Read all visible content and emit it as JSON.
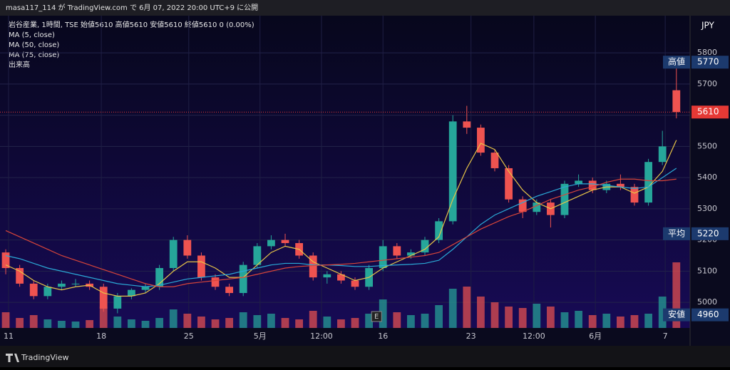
{
  "header": {
    "publisher": "masa117_114 が TradingView.com で 6月 07, 2022 20:00 UTC+9 に公開"
  },
  "footer": {
    "brand": "TradingView"
  },
  "chart_data": {
    "type": "candlestick",
    "legend_lines": [
      "岩谷産業, 1時間, TSE  始値5610 高値5610 安値5610 終値5610 0 (0.00%)",
      "MA (5, close)",
      "MA (50, close)",
      "MA (75, close)",
      "出来高"
    ],
    "currency": "JPY",
    "earnings_marker": "E",
    "x": [
      0,
      1,
      2,
      3,
      4,
      5,
      6,
      7,
      8,
      9,
      10,
      11,
      12,
      13,
      14,
      15,
      16,
      17,
      18,
      19,
      20,
      21,
      22,
      23,
      24,
      25,
      26,
      27,
      28,
      29,
      30,
      31,
      32,
      33,
      34,
      35,
      36,
      37,
      38,
      39,
      40,
      41,
      42,
      43,
      44,
      45,
      46,
      47,
      48
    ],
    "xlim": [
      -0.41,
      48.98
    ],
    "xticks": [
      {
        "value": 0.2,
        "label": "11"
      },
      {
        "value": 6.84,
        "label": "18"
      },
      {
        "value": 13.1,
        "label": "25"
      },
      {
        "value": 18.2,
        "label": "5月"
      },
      {
        "value": 22.6,
        "label": "12:00"
      },
      {
        "value": 27.0,
        "label": "16"
      },
      {
        "value": 33.3,
        "label": "23"
      },
      {
        "value": 37.8,
        "label": "12:00"
      },
      {
        "value": 42.2,
        "label": "6月"
      },
      {
        "value": 47.2,
        "label": "7"
      }
    ],
    "ylim": [
      4918,
      5919
    ],
    "yticks": [
      5000,
      5100,
      5200,
      5300,
      5400,
      5500,
      5600,
      5700,
      5800
    ],
    "up_color": "#26a69a",
    "down_color": "#ef5350",
    "open": [
      5160,
      5110,
      5060,
      5020,
      5050,
      5060,
      5060,
      5050,
      4980,
      5020,
      5040,
      5050,
      5110,
      5200,
      5150,
      5080,
      5050,
      5030,
      5120,
      5180,
      5200,
      5190,
      5150,
      5080,
      5090,
      5070,
      5050,
      5110,
      5180,
      5150,
      5160,
      5200,
      5260,
      5580,
      5560,
      5480,
      5430,
      5330,
      5290,
      5320,
      5280,
      5380,
      5390,
      5360,
      5380,
      5370,
      5320,
      5450,
      5680
    ],
    "high": [
      5170,
      5120,
      5070,
      5060,
      5070,
      5075,
      5070,
      5060,
      5030,
      5045,
      5060,
      5120,
      5210,
      5215,
      5160,
      5090,
      5060,
      5130,
      5190,
      5215,
      5220,
      5200,
      5160,
      5100,
      5100,
      5080,
      5120,
      5200,
      5190,
      5170,
      5210,
      5270,
      5600,
      5630,
      5570,
      5490,
      5440,
      5340,
      5330,
      5330,
      5390,
      5410,
      5400,
      5390,
      5410,
      5380,
      5460,
      5550,
      5770
    ],
    "low": [
      5090,
      5050,
      5010,
      5010,
      5040,
      5050,
      5040,
      4970,
      4965,
      5010,
      5030,
      5040,
      5100,
      5140,
      5070,
      5040,
      5020,
      5020,
      5110,
      5170,
      5180,
      5140,
      5070,
      5060,
      5060,
      5040,
      5040,
      5100,
      5140,
      5140,
      5150,
      5190,
      5250,
      5540,
      5470,
      5420,
      5320,
      5270,
      5280,
      5240,
      5270,
      5370,
      5350,
      5350,
      5360,
      5310,
      5310,
      5440,
      5590
    ],
    "close": [
      5110,
      5060,
      5020,
      5050,
      5060,
      5060,
      5050,
      4980,
      5020,
      5040,
      5050,
      5110,
      5200,
      5150,
      5080,
      5050,
      5030,
      5120,
      5180,
      5200,
      5190,
      5150,
      5080,
      5090,
      5070,
      5050,
      5110,
      5180,
      5150,
      5160,
      5200,
      5260,
      5580,
      5560,
      5480,
      5430,
      5330,
      5290,
      5320,
      5280,
      5380,
      5390,
      5360,
      5380,
      5370,
      5320,
      5450,
      5500,
      5610
    ],
    "volume": [
      22,
      14,
      18,
      12,
      10,
      9,
      11,
      30,
      16,
      12,
      10,
      14,
      26,
      20,
      16,
      12,
      14,
      22,
      18,
      20,
      14,
      12,
      24,
      16,
      12,
      14,
      20,
      40,
      22,
      18,
      20,
      32,
      55,
      58,
      44,
      36,
      30,
      28,
      34,
      30,
      22,
      24,
      18,
      20,
      16,
      18,
      20,
      44,
      92
    ],
    "volume_max": 120,
    "series": [
      {
        "name": "MA (5, close)",
        "color": "#e8c547",
        "values": [
          5120,
          5100,
          5070,
          5050,
          5040,
          5050,
          5055,
          5030,
          5020,
          5020,
          5030,
          5060,
          5100,
          5130,
          5130,
          5110,
          5080,
          5080,
          5120,
          5160,
          5180,
          5170,
          5130,
          5110,
          5090,
          5070,
          5080,
          5110,
          5130,
          5150,
          5170,
          5210,
          5330,
          5430,
          5510,
          5490,
          5420,
          5360,
          5320,
          5300,
          5320,
          5340,
          5360,
          5370,
          5370,
          5350,
          5370,
          5420,
          5520
        ]
      },
      {
        "name": "MA (50, close)",
        "color": "#2ba9d6",
        "values": [
          5150,
          5140,
          5125,
          5110,
          5100,
          5090,
          5080,
          5070,
          5060,
          5055,
          5050,
          5055,
          5065,
          5075,
          5080,
          5085,
          5090,
          5100,
          5110,
          5120,
          5125,
          5125,
          5120,
          5120,
          5118,
          5115,
          5115,
          5118,
          5120,
          5122,
          5125,
          5135,
          5170,
          5210,
          5250,
          5280,
          5300,
          5320,
          5340,
          5355,
          5370,
          5380,
          5380,
          5375,
          5370,
          5365,
          5370,
          5400,
          5430
        ]
      },
      {
        "name": "MA (75, close)",
        "color": "#d8453a",
        "values": [
          5230,
          5210,
          5190,
          5170,
          5150,
          5135,
          5120,
          5105,
          5090,
          5075,
          5060,
          5050,
          5050,
          5060,
          5065,
          5070,
          5075,
          5080,
          5090,
          5100,
          5110,
          5115,
          5118,
          5120,
          5122,
          5125,
          5130,
          5135,
          5140,
          5145,
          5150,
          5160,
          5185,
          5210,
          5235,
          5255,
          5275,
          5290,
          5310,
          5330,
          5345,
          5360,
          5370,
          5385,
          5395,
          5395,
          5390,
          5390,
          5395
        ]
      }
    ],
    "price_labels": [
      {
        "label": "高値",
        "value": 5770,
        "color": "#1c3a6e"
      },
      {
        "label": "平均",
        "value": 5220,
        "color": "#1c3a6e"
      },
      {
        "label": "安値",
        "value": 4960,
        "color": "#1c3a6e"
      }
    ],
    "last_price": 5610,
    "last_color": "#e53935"
  }
}
